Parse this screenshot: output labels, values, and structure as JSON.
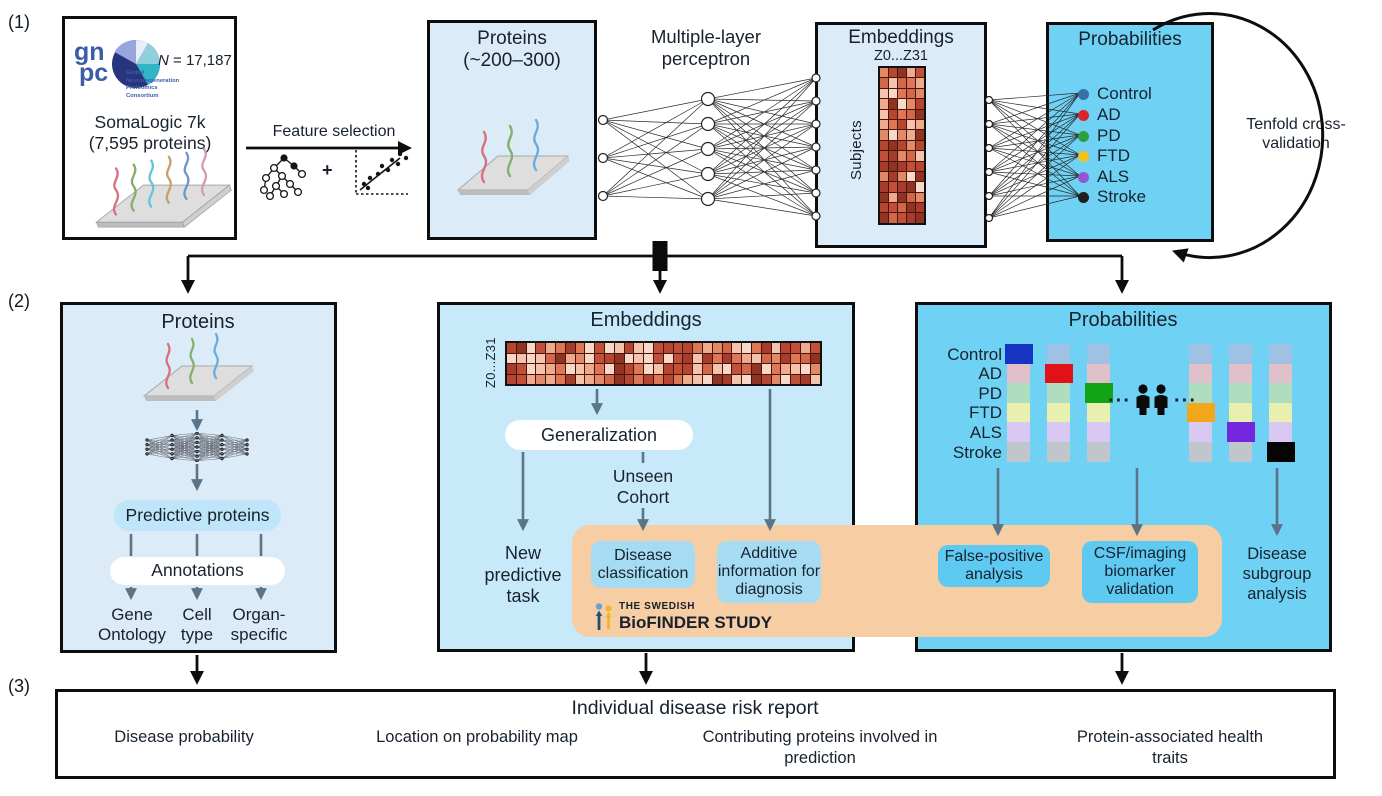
{
  "sections": {
    "one": "(1)",
    "two": "(2)",
    "three": "(3)"
  },
  "gnpc": {
    "logo_gn": "gn",
    "logo_pc": "pc",
    "org_lines": [
      "Global",
      "Neurodegeneration",
      "Proteomics",
      "Consortium"
    ],
    "n_label": "N = 17,187",
    "platform": "SomaLogic 7k",
    "platform_sub": "(7,595 proteins)"
  },
  "feature_selection_label": "Feature selection",
  "plus": "+",
  "proteins1": {
    "title": "Proteins",
    "subtitle": "(~200–300)"
  },
  "mlp_label": "Multiple-layer perceptron",
  "embeddings1": {
    "title": "Embeddings",
    "dims": "Z0...Z31",
    "y_axis": "Subjects"
  },
  "probabilities1": {
    "title": "Probabilities",
    "classes": [
      {
        "label": "Control",
        "color": "#3a6ea8"
      },
      {
        "label": "AD",
        "color": "#d8252d"
      },
      {
        "label": "PD",
        "color": "#2f9e3f"
      },
      {
        "label": "FTD",
        "color": "#f1c11f"
      },
      {
        "label": "ALS",
        "color": "#9355d1"
      },
      {
        "label": "Stroke",
        "color": "#1f1f1f"
      }
    ]
  },
  "tenfold_label": "Tenfold cross-validation",
  "proteins2": {
    "title": "Proteins",
    "predictive_pill": "Predictive proteins",
    "annotations_pill": "Annotations",
    "outputs": [
      "Gene Ontology",
      "Cell type",
      "Organ-specific"
    ]
  },
  "embeddings2": {
    "title": "Embeddings",
    "dims": "Z0...Z31",
    "generalization_pill": "Generalization",
    "unseen": "Unseen Cohort",
    "new_task": "New predictive task",
    "disease_classification": "Disease classification",
    "additive_info": "Additive information for diagnosis"
  },
  "biofinder": {
    "top": "THE SWEDISH",
    "bottom": "BioFINDER STUDY"
  },
  "probabilities2": {
    "title": "Probabilities",
    "ellipsis": "···",
    "rows": [
      {
        "label": "Control",
        "muted": "#9fc1e3",
        "bright": "#1733c1"
      },
      {
        "label": "AD",
        "muted": "#e0c1cb",
        "bright": "#e01217"
      },
      {
        "label": "PD",
        "muted": "#afddc0",
        "bright": "#13a416"
      },
      {
        "label": "FTD",
        "muted": "#e9efaf",
        "bright": "#f2a71b"
      },
      {
        "label": "ALS",
        "muted": "#d9c8f2",
        "bright": "#7527e0"
      },
      {
        "label": "Stroke",
        "muted": "#bfc7cc",
        "bright": "#050505"
      }
    ],
    "highlight_by_column": [
      0,
      1,
      2,
      3,
      4,
      5
    ],
    "pills": {
      "false_positive": "False-positive analysis",
      "csf": "CSF/imaging biomarker validation"
    },
    "subgroup": "Disease subgroup analysis"
  },
  "report": {
    "title": "Individual disease risk report",
    "items": [
      "Disease probability",
      "Location on probability map",
      "Contributing proteins involved in prediction",
      "Protein-associated health traits"
    ]
  },
  "colors": {
    "box_light": "#dcebf8",
    "box_cyan": "#c8e9f9",
    "box_sky": "#6fd1f3",
    "band": "#f7cda3",
    "pill_light_blue": "#a5dcf3",
    "pill_sky": "#5ec9f1",
    "predictive_pill": "#bfe6f8",
    "annotations_pill": "#ffffff",
    "arrow_gray": "#5c7487",
    "heat_grid": "#4a120a",
    "heat_palette": [
      "#a63d2c",
      "#c05039",
      "#d2684a",
      "#e08a68",
      "#edaa8d",
      "#f4c3ac",
      "#f8d8c6",
      "#8f3423",
      "#b5462f",
      "#dd7756"
    ]
  }
}
